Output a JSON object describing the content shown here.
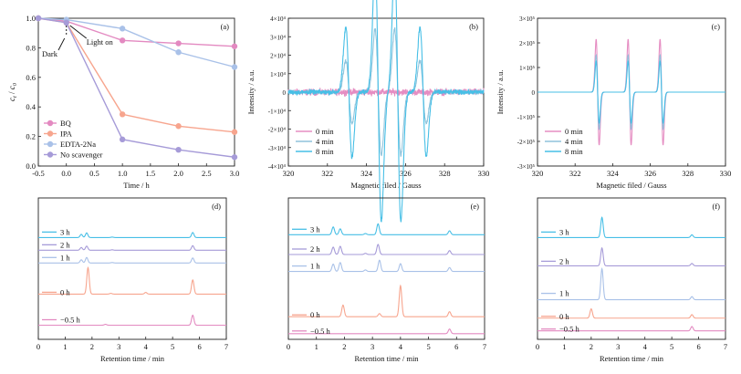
{
  "chart_data": [
    {
      "id": "a",
      "panel_label": "(a)",
      "type": "line",
      "xlabel": "Time / h",
      "ylabel": "c_t / c_0",
      "xlim": [
        -0.5,
        3.0
      ],
      "ylim": [
        0.0,
        1.0
      ],
      "xticks": [
        "-0.5",
        "0.0",
        "0.5",
        "1.0",
        "1.5",
        "2.0",
        "2.5",
        "3.0"
      ],
      "yticks": [
        "0.0",
        "0.2",
        "0.4",
        "0.6",
        "0.8",
        "1.0"
      ],
      "annotations": {
        "dark": "Dark",
        "light": "Light on"
      },
      "legend_position": "bottom-left",
      "series": [
        {
          "name": "BQ",
          "color": "#e38ac1",
          "x": [
            -0.5,
            0,
            1,
            2,
            3
          ],
          "y": [
            1.0,
            0.98,
            0.85,
            0.83,
            0.81
          ]
        },
        {
          "name": "IPA",
          "color": "#f7a58e",
          "x": [
            -0.5,
            0,
            1,
            2,
            3
          ],
          "y": [
            1.0,
            0.97,
            0.35,
            0.27,
            0.23
          ]
        },
        {
          "name": "EDTA-2Na",
          "color": "#a9c1e8",
          "x": [
            -0.5,
            0,
            1,
            2,
            3
          ],
          "y": [
            1.0,
            0.99,
            0.93,
            0.77,
            0.67
          ]
        },
        {
          "name": "No scavenger",
          "color": "#a69bd8",
          "x": [
            -0.5,
            0,
            1,
            2,
            3
          ],
          "y": [
            1.0,
            0.97,
            0.18,
            0.11,
            0.06
          ]
        }
      ]
    },
    {
      "id": "b",
      "panel_label": "(b)",
      "type": "line",
      "xlabel": "Magnetic filed / Gauss",
      "ylabel": "Intensity / a.u.",
      "xlim": [
        320,
        330
      ],
      "ylim": [
        -40000,
        40000
      ],
      "xticks": [
        "320",
        "322",
        "324",
        "326",
        "328",
        "330"
      ],
      "yticks": [
        "-4×10⁴",
        "-3×10⁴",
        "-2×10⁴",
        "-1×10⁴",
        "0",
        "1×10⁴",
        "2×10⁴",
        "3×10⁴",
        "4×10⁴"
      ],
      "legend_position": "bottom-left",
      "signal": {
        "line_centers": [
          323.1,
          324.6,
          325.6,
          326.9
        ],
        "relative_amplitudes": [
          1,
          2,
          2,
          1
        ],
        "linewidth": 0.16
      },
      "series": [
        {
          "name": "0 min",
          "color": "#e58dc2",
          "amplitude": 0,
          "noise": 1500
        },
        {
          "name": "4 min",
          "color": "#8fc4dc",
          "amplitude": 17000,
          "noise": 900
        },
        {
          "name": "8 min",
          "color": "#47bfe6",
          "amplitude": 35000,
          "noise": 1100
        }
      ]
    },
    {
      "id": "c",
      "panel_label": "(c)",
      "type": "line",
      "xlabel": "Magnetic filed / Gauss",
      "ylabel": "Intensity / a.u.",
      "xlim": [
        320,
        330
      ],
      "ylim": [
        -300000,
        300000
      ],
      "xticks": [
        "320",
        "322",
        "324",
        "326",
        "328",
        "330"
      ],
      "yticks": [
        "-3×10⁵",
        "-2×10⁵",
        "-1×10⁵",
        "0",
        "1×10⁵",
        "2×10⁵",
        "3×10⁵"
      ],
      "legend_position": "bottom-left",
      "signal": {
        "line_centers": [
          323.2,
          324.9,
          326.6
        ],
        "relative_amplitudes": [
          1,
          1,
          1
        ],
        "linewidth": 0.08
      },
      "series": [
        {
          "name": "0 min",
          "color": "#e58dc2",
          "amplitude": 215000
        },
        {
          "name": "4 min",
          "color": "#8fc4dc",
          "amplitude": 150000
        },
        {
          "name": "8 min",
          "color": "#47bfe6",
          "amplitude": 125000
        }
      ]
    },
    {
      "id": "d",
      "panel_label": "(d)",
      "type": "line",
      "xlabel": "Retention time / min",
      "xlim": [
        0,
        7
      ],
      "xticks": [
        "0",
        "1",
        "2",
        "3",
        "4",
        "5",
        "6",
        "7"
      ],
      "series": [
        {
          "name": "3 h",
          "color": "#47bfe6",
          "peaks": [
            [
              1.6,
              0.35
            ],
            [
              1.8,
              0.5
            ],
            [
              2.75,
              0.05
            ],
            [
              5.75,
              0.55
            ]
          ]
        },
        {
          "name": "2 h",
          "color": "#a69bd8",
          "peaks": [
            [
              1.6,
              0.3
            ],
            [
              1.8,
              0.45
            ],
            [
              2.75,
              0.05
            ],
            [
              5.75,
              0.5
            ]
          ]
        },
        {
          "name": "1 h",
          "color": "#a9c1e8",
          "peaks": [
            [
              1.6,
              0.35
            ],
            [
              1.8,
              0.6
            ],
            [
              2.75,
              0.05
            ],
            [
              5.75,
              0.55
            ]
          ]
        },
        {
          "name": "0 h",
          "color": "#f7a58e",
          "peaks": [
            [
              1.85,
              2.9
            ],
            [
              2.7,
              0.08
            ],
            [
              4.0,
              0.18
            ],
            [
              5.75,
              1.55
            ]
          ]
        },
        {
          "name": "−0.5 h",
          "color": "#e38ac1",
          "peaks": [
            [
              2.5,
              0.1
            ],
            [
              5.75,
              1.1
            ]
          ]
        }
      ]
    },
    {
      "id": "e",
      "panel_label": "(e)",
      "type": "line",
      "xlabel": "Retention time / min",
      "xlim": [
        0,
        7
      ],
      "xticks": [
        "0",
        "1",
        "2",
        "3",
        "4",
        "5",
        "6",
        "7"
      ],
      "series": [
        {
          "name": "3 h",
          "color": "#47bfe6",
          "peaks": [
            [
              1.6,
              1.0
            ],
            [
              1.85,
              0.75
            ],
            [
              2.75,
              0.15
            ],
            [
              3.2,
              1.4
            ],
            [
              5.75,
              0.5
            ]
          ]
        },
        {
          "name": "2 h",
          "color": "#a69bd8",
          "peaks": [
            [
              1.6,
              0.95
            ],
            [
              1.85,
              1.05
            ],
            [
              2.75,
              0.15
            ],
            [
              3.2,
              1.3
            ],
            [
              5.75,
              0.5
            ]
          ]
        },
        {
          "name": "1 h",
          "color": "#a9c1e8",
          "peaks": [
            [
              1.6,
              0.95
            ],
            [
              1.85,
              1.15
            ],
            [
              2.75,
              0.2
            ],
            [
              3.25,
              1.45
            ],
            [
              4.0,
              1.0
            ],
            [
              5.75,
              0.5
            ]
          ]
        },
        {
          "name": "0 h",
          "color": "#f7a58e",
          "peaks": [
            [
              1.95,
              1.5
            ],
            [
              3.25,
              0.4
            ],
            [
              4.0,
              4.0
            ],
            [
              5.75,
              0.65
            ]
          ]
        },
        {
          "name": "−0.5 h",
          "color": "#e38ac1",
          "peaks": [
            [
              5.75,
              0.6
            ]
          ]
        }
      ]
    },
    {
      "id": "f",
      "panel_label": "(f)",
      "type": "line",
      "xlabel": "Retention time / min",
      "xlim": [
        0,
        7
      ],
      "xticks": [
        "0",
        "1",
        "2",
        "3",
        "4",
        "5",
        "6",
        "7"
      ],
      "series": [
        {
          "name": "3 h",
          "color": "#47bfe6",
          "peaks": [
            [
              2.4,
              2.6
            ],
            [
              5.75,
              0.35
            ]
          ]
        },
        {
          "name": "2 h",
          "color": "#a69bd8",
          "peaks": [
            [
              2.4,
              2.3
            ],
            [
              5.75,
              0.3
            ]
          ]
        },
        {
          "name": "1 h",
          "color": "#a9c1e8",
          "peaks": [
            [
              2.4,
              4.0
            ],
            [
              5.75,
              0.4
            ]
          ]
        },
        {
          "name": "0 h",
          "color": "#f7a58e",
          "peaks": [
            [
              2.0,
              1.2
            ],
            [
              5.75,
              0.45
            ]
          ]
        },
        {
          "name": "−0.5 h",
          "color": "#e38ac1",
          "peaks": [
            [
              5.75,
              0.55
            ]
          ]
        }
      ]
    }
  ]
}
